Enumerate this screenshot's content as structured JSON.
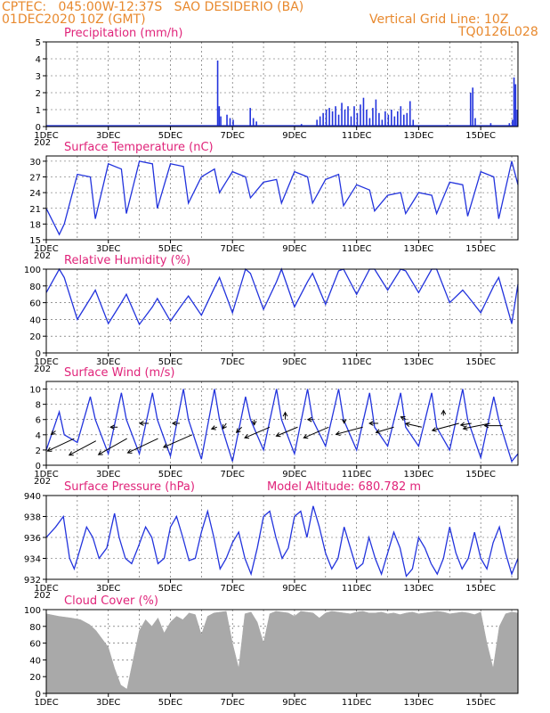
{
  "header": {
    "line1": "CPTEC:   045:00W-12:37S   SAO DESIDERIO (BA)",
    "line2": "01DEC2020 10Z (GMT)",
    "grid_note": "Vertical Grid Line: 10Z",
    "code": "TQ0126L028"
  },
  "colors": {
    "header": "#e8892e",
    "title": "#e0247a",
    "series": "#2233dd",
    "cloud": "#a9a9a9",
    "grid": "#555555"
  },
  "x_tick_labels": [
    "1DEC",
    "3DEC",
    "5DEC",
    "7DEC",
    "9DEC",
    "11DEC",
    "13DEC",
    "15DEC"
  ],
  "year_label": "202",
  "chart_data": [
    {
      "id": "precip",
      "type": "bar",
      "title": "Precipitation  (mm/h)",
      "ylim": [
        0,
        5
      ],
      "yticks": [
        0,
        1,
        2,
        3,
        4,
        5
      ],
      "x_range_days": [
        0,
        15.2
      ],
      "events": [
        {
          "d": 5.5,
          "v": 3.9
        },
        {
          "d": 5.55,
          "v": 1.2
        },
        {
          "d": 5.6,
          "v": 0.6
        },
        {
          "d": 5.8,
          "v": 0.7
        },
        {
          "d": 5.9,
          "v": 0.5
        },
        {
          "d": 6.0,
          "v": 0.4
        },
        {
          "d": 6.55,
          "v": 1.1
        },
        {
          "d": 6.65,
          "v": 0.5
        },
        {
          "d": 6.75,
          "v": 0.3
        },
        {
          "d": 8.2,
          "v": 0.15
        },
        {
          "d": 8.7,
          "v": 0.4
        },
        {
          "d": 8.8,
          "v": 0.6
        },
        {
          "d": 8.9,
          "v": 0.8
        },
        {
          "d": 9.0,
          "v": 1.0
        },
        {
          "d": 9.1,
          "v": 1.1
        },
        {
          "d": 9.2,
          "v": 0.9
        },
        {
          "d": 9.3,
          "v": 1.2
        },
        {
          "d": 9.4,
          "v": 0.7
        },
        {
          "d": 9.5,
          "v": 1.4
        },
        {
          "d": 9.6,
          "v": 1.0
        },
        {
          "d": 9.7,
          "v": 1.2
        },
        {
          "d": 9.8,
          "v": 0.6
        },
        {
          "d": 9.9,
          "v": 1.2
        },
        {
          "d": 10.0,
          "v": 0.8
        },
        {
          "d": 10.1,
          "v": 1.3
        },
        {
          "d": 10.2,
          "v": 1.7
        },
        {
          "d": 10.3,
          "v": 1.0
        },
        {
          "d": 10.4,
          "v": 0.5
        },
        {
          "d": 10.5,
          "v": 1.1
        },
        {
          "d": 10.6,
          "v": 1.6
        },
        {
          "d": 10.7,
          "v": 0.8
        },
        {
          "d": 10.8,
          "v": 0.4
        },
        {
          "d": 10.9,
          "v": 0.9
        },
        {
          "d": 11.0,
          "v": 0.7
        },
        {
          "d": 11.1,
          "v": 1.0
        },
        {
          "d": 11.2,
          "v": 0.6
        },
        {
          "d": 11.3,
          "v": 0.9
        },
        {
          "d": 11.4,
          "v": 1.2
        },
        {
          "d": 11.5,
          "v": 0.7
        },
        {
          "d": 11.6,
          "v": 0.8
        },
        {
          "d": 11.7,
          "v": 1.5
        },
        {
          "d": 11.8,
          "v": 0.4
        },
        {
          "d": 12.9,
          "v": 0.1
        },
        {
          "d": 13.65,
          "v": 2.0
        },
        {
          "d": 13.72,
          "v": 2.3
        },
        {
          "d": 13.8,
          "v": 0.5
        },
        {
          "d": 14.3,
          "v": 0.2
        },
        {
          "d": 14.9,
          "v": 0.2
        },
        {
          "d": 15.0,
          "v": 0.4
        },
        {
          "d": 15.05,
          "v": 2.9
        },
        {
          "d": 15.1,
          "v": 2.5
        },
        {
          "d": 15.15,
          "v": 1.0
        }
      ]
    },
    {
      "id": "temp",
      "type": "line",
      "title": "Surface Temperature (nC)",
      "ylim": [
        15,
        31
      ],
      "yticks": [
        15,
        18,
        21,
        24,
        27,
        30
      ],
      "x_range_days": [
        0,
        15.2
      ],
      "days": [
        0,
        0.42,
        0.58,
        1.0,
        1.42,
        1.58,
        2.0,
        2.42,
        2.58,
        3.0,
        3.42,
        3.58,
        4.0,
        4.42,
        4.58,
        5.0,
        5.42,
        5.58,
        6.0,
        6.42,
        6.58,
        7.0,
        7.42,
        7.58,
        8.0,
        8.42,
        8.58,
        9.0,
        9.42,
        9.58,
        10.0,
        10.42,
        10.58,
        11.0,
        11.42,
        11.58,
        12.0,
        12.42,
        12.58,
        13.0,
        13.42,
        13.58,
        14.0,
        14.42,
        14.58,
        15.0,
        15.2
      ],
      "values": [
        21,
        16,
        18,
        27.5,
        27,
        19,
        29.5,
        28.5,
        20,
        30,
        29.5,
        21,
        29.5,
        29,
        22,
        27,
        28.5,
        24,
        28,
        27,
        23,
        26,
        26.5,
        22,
        28,
        27,
        22,
        26.5,
        27.5,
        21.5,
        25.5,
        24.5,
        20.5,
        23.5,
        24,
        20,
        24,
        23.5,
        20,
        26,
        25.5,
        19.5,
        28,
        27,
        19,
        30,
        25.5
      ]
    },
    {
      "id": "rh",
      "type": "line",
      "title": "Relative Humidity (%)",
      "ylim": [
        0,
        100
      ],
      "yticks": [
        0,
        20,
        40,
        60,
        80,
        100
      ],
      "x_range_days": [
        0,
        15.2
      ],
      "days": [
        0,
        0.42,
        0.58,
        1.0,
        1.42,
        1.58,
        2.0,
        2.42,
        2.58,
        3.0,
        3.42,
        3.58,
        4.0,
        4.42,
        4.58,
        5.0,
        5.42,
        5.58,
        6.0,
        6.42,
        6.58,
        7.0,
        7.42,
        7.58,
        8.0,
        8.42,
        8.58,
        9.0,
        9.42,
        9.58,
        10.0,
        10.42,
        10.58,
        11.0,
        11.42,
        11.58,
        12.0,
        12.42,
        12.58,
        13.0,
        13.42,
        13.58,
        14.0,
        14.42,
        14.58,
        15.0,
        15.2
      ],
      "values": [
        72,
        100,
        90,
        40,
        65,
        75,
        35,
        60,
        70,
        34,
        55,
        65,
        38,
        60,
        68,
        45,
        78,
        90,
        48,
        100,
        95,
        52,
        85,
        100,
        55,
        85,
        95,
        58,
        98,
        100,
        70,
        100,
        100,
        75,
        100,
        98,
        72,
        100,
        100,
        60,
        75,
        68,
        48,
        80,
        90,
        35,
        82
      ]
    },
    {
      "id": "wind",
      "type": "line",
      "title": "Surface Wind (m/s)",
      "ylim": [
        0,
        11
      ],
      "yticks": [
        0,
        2,
        4,
        6,
        8,
        10
      ],
      "x_range_days": [
        0,
        15.2
      ],
      "days": [
        0,
        0.42,
        0.58,
        1.0,
        1.42,
        1.58,
        2.0,
        2.42,
        2.58,
        3.0,
        3.42,
        3.58,
        4.0,
        4.42,
        4.58,
        5.0,
        5.42,
        5.58,
        6.0,
        6.42,
        6.58,
        7.0,
        7.42,
        7.58,
        8.0,
        8.42,
        8.58,
        9.0,
        9.42,
        9.58,
        10.0,
        10.42,
        10.58,
        11.0,
        11.42,
        11.58,
        12.0,
        12.42,
        12.58,
        13.0,
        13.42,
        13.58,
        14.0,
        14.42,
        14.58,
        15.0,
        15.2
      ],
      "values": [
        2,
        7,
        4,
        3,
        9,
        6,
        1.5,
        9.5,
        6,
        1.5,
        9.5,
        6,
        1.2,
        10,
        6,
        0.8,
        10,
        6,
        0.5,
        9,
        6,
        2,
        10,
        6,
        1.5,
        10,
        6,
        2.5,
        10,
        6,
        2,
        9.5,
        5,
        2.5,
        9.5,
        5,
        2.5,
        9.5,
        5,
        2,
        10,
        6,
        1,
        9,
        6,
        0.5,
        1.5
      ],
      "arrows": [
        {
          "d": 0.3,
          "s": 4.5,
          "dx": -5,
          "dy": 4
        },
        {
          "d": 0.9,
          "s": 3.5,
          "dx": -30,
          "dy": 14
        },
        {
          "d": 1.6,
          "s": 3.2,
          "dx": -30,
          "dy": 16
        },
        {
          "d": 2.3,
          "s": 5,
          "dx": -8,
          "dy": 0
        },
        {
          "d": 2.6,
          "s": 3.5,
          "dx": -32,
          "dy": 18
        },
        {
          "d": 3.3,
          "s": 5.5,
          "dx": -10,
          "dy": 0
        },
        {
          "d": 3.6,
          "s": 3.5,
          "dx": -34,
          "dy": 16
        },
        {
          "d": 4.3,
          "s": 5.5,
          "dx": -8,
          "dy": 0
        },
        {
          "d": 4.7,
          "s": 4,
          "dx": -32,
          "dy": 14
        },
        {
          "d": 5.5,
          "s": 5,
          "dx": -6,
          "dy": 2
        },
        {
          "d": 5.8,
          "s": 5.5,
          "dx": -4,
          "dy": 6
        },
        {
          "d": 6.3,
          "s": 5,
          "dx": -6,
          "dy": 6
        },
        {
          "d": 6.7,
          "s": 6,
          "dx": 0,
          "dy": 6
        },
        {
          "d": 7.2,
          "s": 5,
          "dx": -28,
          "dy": 12
        },
        {
          "d": 7.7,
          "s": 6,
          "dx": 0,
          "dy": -8
        },
        {
          "d": 8.1,
          "s": 5,
          "dx": -24,
          "dy": 10
        },
        {
          "d": 8.6,
          "s": 6,
          "dx": -6,
          "dy": 0
        },
        {
          "d": 9.1,
          "s": 5,
          "dx": -28,
          "dy": 12
        },
        {
          "d": 9.6,
          "s": 6,
          "dx": 0,
          "dy": 4
        },
        {
          "d": 10.2,
          "s": 5,
          "dx": -30,
          "dy": 8
        },
        {
          "d": 10.7,
          "s": 5.5,
          "dx": -10,
          "dy": 0
        },
        {
          "d": 11.2,
          "s": 5,
          "dx": -20,
          "dy": 6
        },
        {
          "d": 11.6,
          "s": 6,
          "dx": -6,
          "dy": -3
        },
        {
          "d": 12.1,
          "s": 5,
          "dx": -18,
          "dy": -4
        },
        {
          "d": 12.8,
          "s": 6.5,
          "dx": 0,
          "dy": -6
        },
        {
          "d": 13.3,
          "s": 5.5,
          "dx": -30,
          "dy": 8
        },
        {
          "d": 13.7,
          "s": 5.5,
          "dx": -12,
          "dy": 2
        },
        {
          "d": 14.3,
          "s": 5.5,
          "dx": -30,
          "dy": 6
        },
        {
          "d": 14.7,
          "s": 5.2,
          "dx": -20,
          "dy": 0
        }
      ]
    },
    {
      "id": "pres",
      "type": "line",
      "title": "Surface Pressure (hPa)",
      "annotation": "Model Altitude: 680.782  m",
      "ylim": [
        932,
        940
      ],
      "yticks": [
        932,
        934,
        936,
        938,
        940
      ],
      "x_range_days": [
        0,
        15.2
      ],
      "days": [
        0,
        0.3,
        0.55,
        0.75,
        0.9,
        1.1,
        1.3,
        1.5,
        1.7,
        1.95,
        2.2,
        2.35,
        2.55,
        2.75,
        2.95,
        3.2,
        3.4,
        3.6,
        3.8,
        4.0,
        4.2,
        4.4,
        4.6,
        4.8,
        5.0,
        5.2,
        5.4,
        5.6,
        5.8,
        6.0,
        6.2,
        6.4,
        6.6,
        6.8,
        7.0,
        7.2,
        7.4,
        7.6,
        7.8,
        8.0,
        8.2,
        8.4,
        8.6,
        8.8,
        9.0,
        9.2,
        9.4,
        9.6,
        9.8,
        10.0,
        10.2,
        10.4,
        10.6,
        10.8,
        11.0,
        11.2,
        11.4,
        11.6,
        11.8,
        12.0,
        12.2,
        12.4,
        12.6,
        12.8,
        13.0,
        13.2,
        13.4,
        13.6,
        13.8,
        14.0,
        14.2,
        14.4,
        14.6,
        14.8,
        15.0,
        15.2
      ],
      "values": [
        936,
        937,
        938,
        934,
        933,
        935,
        937,
        936,
        934,
        935,
        938.3,
        936,
        934,
        933.5,
        935,
        937,
        936,
        933.5,
        934,
        937,
        938,
        936,
        933.8,
        934,
        936.5,
        938.5,
        936,
        933,
        934,
        935.5,
        936.5,
        934,
        932.5,
        935,
        938,
        938.5,
        936,
        934,
        935,
        938,
        938.5,
        936,
        939,
        937,
        934.5,
        933,
        934,
        937,
        935,
        933,
        933.5,
        936,
        934,
        932.5,
        934.5,
        936.5,
        935,
        932.3,
        933,
        936,
        935,
        933.5,
        932.5,
        934,
        937,
        934.5,
        933,
        934,
        936.5,
        934,
        933,
        935.5,
        937,
        934.5,
        932.5,
        934
      ]
    },
    {
      "id": "cloud",
      "type": "area",
      "title": "Cloud Cover (%)",
      "ylim": [
        0,
        100
      ],
      "yticks": [
        0,
        20,
        40,
        60,
        80,
        100
      ],
      "x_range_days": [
        0,
        15.2
      ],
      "days": [
        0,
        0.4,
        0.8,
        1.1,
        1.4,
        1.6,
        1.8,
        2.0,
        2.2,
        2.4,
        2.6,
        2.8,
        3.0,
        3.2,
        3.4,
        3.6,
        3.8,
        4.0,
        4.2,
        4.4,
        4.6,
        4.8,
        5.0,
        5.2,
        5.4,
        5.6,
        5.8,
        6.0,
        6.2,
        6.4,
        6.6,
        6.8,
        7.0,
        7.2,
        7.4,
        7.6,
        7.8,
        8.0,
        8.2,
        8.4,
        8.6,
        8.8,
        9.0,
        9.2,
        9.4,
        9.6,
        9.8,
        10.0,
        10.2,
        10.4,
        10.6,
        10.8,
        11.0,
        11.2,
        11.4,
        11.6,
        11.8,
        12.0,
        12.2,
        12.4,
        12.6,
        12.8,
        13.0,
        13.2,
        13.4,
        13.6,
        13.8,
        14.0,
        14.2,
        14.4,
        14.6,
        14.8,
        15.0,
        15.2
      ],
      "values": [
        95,
        92,
        90,
        88,
        82,
        75,
        65,
        55,
        30,
        10,
        5,
        40,
        75,
        88,
        80,
        90,
        72,
        85,
        92,
        88,
        96,
        94,
        70,
        92,
        96,
        97,
        98,
        60,
        30,
        95,
        97,
        85,
        60,
        95,
        98,
        97,
        96,
        92,
        98,
        97,
        96,
        90,
        96,
        98,
        97,
        96,
        95,
        97,
        98,
        96,
        96,
        97,
        95,
        96,
        94,
        96,
        97,
        95,
        96,
        97,
        98,
        97,
        95,
        96,
        97,
        96,
        94,
        97,
        60,
        30,
        80,
        95,
        97,
        96
      ]
    }
  ]
}
